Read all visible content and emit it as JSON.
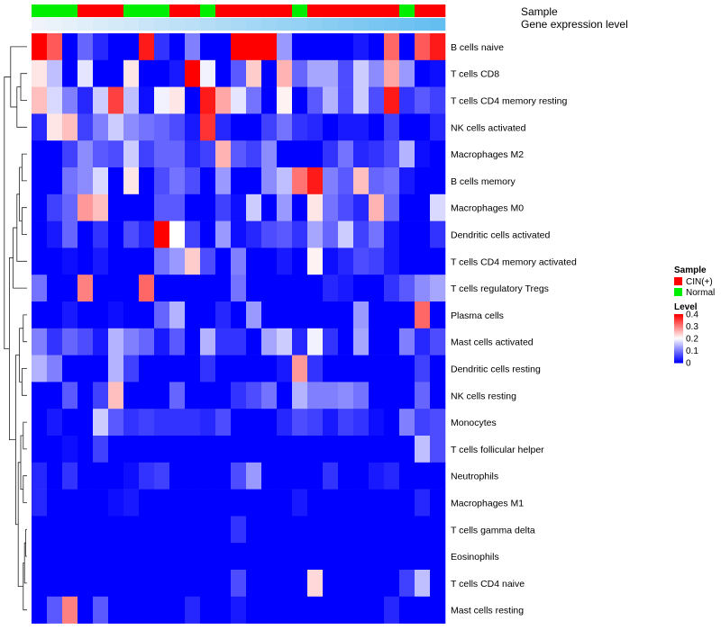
{
  "chart_data": {
    "type": "heatmap",
    "title": "",
    "annotation_tracks": [
      {
        "name": "Sample",
        "label": "Sample"
      },
      {
        "name": "Gene expression level",
        "label": "Gene expression level"
      }
    ],
    "sample_groups": [
      "Normal",
      "Normal",
      "Normal",
      "CIN(+)",
      "CIN(+)",
      "CIN(+)",
      "Normal",
      "Normal",
      "Normal",
      "CIN(+)",
      "CIN(+)",
      "Normal",
      "CIN(+)",
      "CIN(+)",
      "CIN(+)",
      "CIN(+)",
      "CIN(+)",
      "Normal",
      "CIN(+)",
      "CIN(+)",
      "CIN(+)",
      "CIN(+)",
      "CIN(+)",
      "CIN(+)",
      "Normal",
      "CIN(+)",
      "CIN(+)"
    ],
    "expression_gradient": [
      0.0,
      0.04,
      0.08,
      0.12,
      0.15,
      0.19,
      0.23,
      0.27,
      0.31,
      0.35,
      0.38,
      0.42,
      0.46,
      0.5,
      0.54,
      0.58,
      0.62,
      0.65,
      0.69,
      0.73,
      0.77,
      0.81,
      0.85,
      0.88,
      0.92,
      0.96,
      1.0
    ],
    "rows": [
      "B cells naive",
      "T cells CD8",
      "T cells CD4 memory resting",
      "NK cells activated",
      "Macrophages M2",
      "B cells memory",
      "Macrophages M0",
      "Dendritic cells activated",
      "T cells CD4 memory activated",
      "T cells regulatory  Tregs",
      "Plasma cells",
      "Mast cells activated",
      "Dendritic cells resting",
      "NK cells resting",
      "Monocytes",
      "T cells follicular helper",
      "Neutrophils",
      "Macrophages M1",
      "T cells gamma delta",
      "Eosinophils",
      "T cells CD4 naive",
      "Mast cells resting"
    ],
    "values": [
      [
        0.4,
        0.33,
        0.0,
        0.08,
        0.03,
        0.0,
        0.0,
        0.38,
        0.04,
        0.0,
        0.1,
        0.0,
        0.0,
        0.4,
        0.4,
        0.4,
        0.12,
        0.0,
        0.0,
        0.0,
        0.0,
        0.02,
        0.0,
        0.32,
        0.0,
        0.33,
        0.38
      ],
      [
        0.22,
        0.15,
        0.0,
        0.18,
        0.0,
        0.0,
        0.22,
        0.0,
        0.0,
        0.02,
        0.4,
        0.19,
        0.0,
        0.07,
        0.24,
        0.0,
        0.26,
        0.08,
        0.13,
        0.13,
        0.06,
        0.16,
        0.11,
        0.27,
        0.12,
        0.0,
        0.01
      ],
      [
        0.25,
        0.17,
        0.1,
        0.03,
        0.16,
        0.35,
        0.15,
        0.01,
        0.19,
        0.22,
        0.0,
        0.38,
        0.27,
        0.18,
        0.09,
        0.0,
        0.21,
        0.0,
        0.07,
        0.14,
        0.06,
        0.16,
        0.06,
        0.38,
        0.04,
        0.07,
        0.05
      ],
      [
        0.03,
        0.22,
        0.25,
        0.05,
        0.1,
        0.16,
        0.11,
        0.09,
        0.08,
        0.06,
        0.02,
        0.36,
        0.03,
        0.0,
        0.0,
        0.05,
        0.09,
        0.04,
        0.03,
        0.0,
        0.02,
        0.02,
        0.0,
        0.05,
        0.0,
        0.0,
        0.03
      ],
      [
        0.0,
        0.0,
        0.05,
        0.11,
        0.07,
        0.06,
        0.16,
        0.05,
        0.08,
        0.08,
        0.03,
        0.05,
        0.26,
        0.07,
        0.05,
        0.11,
        0.0,
        0.0,
        0.0,
        0.04,
        0.09,
        0.03,
        0.04,
        0.06,
        0.14,
        0.01,
        0.0
      ],
      [
        0.0,
        0.0,
        0.09,
        0.11,
        0.17,
        0.0,
        0.22,
        0.0,
        0.06,
        0.09,
        0.06,
        0.0,
        0.12,
        0.0,
        0.0,
        0.11,
        0.15,
        0.31,
        0.38,
        0.1,
        0.07,
        0.25,
        0.08,
        0.09,
        0.02,
        0.0,
        0.0
      ],
      [
        0.0,
        0.05,
        0.08,
        0.28,
        0.25,
        0.0,
        0.0,
        0.0,
        0.07,
        0.07,
        0.0,
        0.0,
        0.05,
        0.01,
        0.16,
        0.0,
        0.12,
        0.0,
        0.22,
        0.09,
        0.06,
        0.03,
        0.26,
        0.08,
        0.0,
        0.0,
        0.17
      ],
      [
        0.0,
        0.02,
        0.08,
        0.0,
        0.04,
        0.0,
        0.06,
        0.03,
        0.4,
        0.2,
        0.05,
        0.0,
        0.12,
        0.01,
        0.03,
        0.06,
        0.07,
        0.04,
        0.13,
        0.08,
        0.16,
        0.05,
        0.09,
        0.02,
        0.0,
        0.0,
        0.04
      ],
      [
        0.0,
        0.0,
        0.01,
        0.0,
        0.02,
        0.0,
        0.0,
        0.0,
        0.09,
        0.12,
        0.24,
        0.06,
        0.0,
        0.1,
        0.0,
        0.0,
        0.02,
        0.0,
        0.21,
        0.01,
        0.03,
        0.06,
        0.05,
        0.02,
        0.0,
        0.0,
        0.0
      ],
      [
        0.09,
        0.0,
        0.0,
        0.3,
        0.0,
        0.0,
        0.0,
        0.32,
        0.0,
        0.0,
        0.0,
        0.0,
        0.0,
        0.09,
        0.0,
        0.0,
        0.0,
        0.0,
        0.0,
        0.03,
        0.02,
        0.0,
        0.0,
        0.04,
        0.07,
        0.11,
        0.13
      ],
      [
        0.0,
        0.0,
        0.02,
        0.0,
        0.0,
        0.01,
        0.0,
        0.0,
        0.08,
        0.14,
        0.0,
        0.0,
        0.03,
        0.0,
        0.12,
        0.0,
        0.0,
        0.0,
        0.0,
        0.0,
        0.0,
        0.12,
        0.0,
        0.0,
        0.0,
        0.32,
        0.0
      ],
      [
        0.1,
        0.04,
        0.08,
        0.06,
        0.02,
        0.14,
        0.1,
        0.08,
        0.02,
        0.07,
        0.0,
        0.14,
        0.04,
        0.04,
        0.0,
        0.13,
        0.16,
        0.03,
        0.19,
        0.04,
        0.0,
        0.13,
        0.0,
        0.0,
        0.1,
        0.03,
        0.06
      ],
      [
        0.14,
        0.1,
        0.0,
        0.0,
        0.0,
        0.14,
        0.05,
        0.0,
        0.0,
        0.0,
        0.0,
        0.04,
        0.0,
        0.0,
        0.0,
        0.0,
        0.02,
        0.28,
        0.04,
        0.0,
        0.0,
        0.0,
        0.0,
        0.0,
        0.0,
        0.05,
        0.0
      ],
      [
        0.0,
        0.0,
        0.07,
        0.0,
        0.05,
        0.25,
        0.0,
        0.0,
        0.0,
        0.08,
        0.0,
        0.0,
        0.0,
        0.04,
        0.06,
        0.09,
        0.0,
        0.14,
        0.1,
        0.1,
        0.11,
        0.09,
        0.0,
        0.0,
        0.0,
        0.08,
        0.0
      ],
      [
        0.0,
        0.02,
        0.0,
        0.0,
        0.16,
        0.07,
        0.04,
        0.05,
        0.04,
        0.04,
        0.04,
        0.03,
        0.06,
        0.0,
        0.0,
        0.0,
        0.03,
        0.06,
        0.05,
        0.02,
        0.05,
        0.04,
        0.01,
        0.0,
        0.1,
        0.05,
        0.06
      ],
      [
        0.0,
        0.0,
        0.01,
        0.0,
        0.05,
        0.0,
        0.0,
        0.0,
        0.0,
        0.0,
        0.0,
        0.0,
        0.0,
        0.0,
        0.0,
        0.0,
        0.0,
        0.0,
        0.0,
        0.0,
        0.0,
        0.0,
        0.0,
        0.0,
        0.0,
        0.15,
        0.06
      ],
      [
        0.03,
        0.0,
        0.04,
        0.0,
        0.0,
        0.0,
        0.01,
        0.04,
        0.05,
        0.0,
        0.0,
        0.0,
        0.0,
        0.06,
        0.12,
        0.0,
        0.0,
        0.0,
        0.0,
        0.04,
        0.0,
        0.0,
        0.02,
        0.03,
        0.0,
        0.0,
        0.0
      ],
      [
        0.03,
        0.0,
        0.0,
        0.0,
        0.0,
        0.01,
        0.02,
        0.0,
        0.0,
        0.0,
        0.0,
        0.0,
        0.0,
        0.0,
        0.0,
        0.0,
        0.0,
        0.02,
        0.0,
        0.0,
        0.0,
        0.0,
        0.0,
        0.0,
        0.0,
        0.03,
        0.0
      ],
      [
        0.0,
        0.0,
        0.0,
        0.0,
        0.0,
        0.0,
        0.0,
        0.0,
        0.0,
        0.0,
        0.0,
        0.0,
        0.0,
        0.04,
        0.0,
        0.0,
        0.0,
        0.0,
        0.0,
        0.0,
        0.0,
        0.0,
        0.0,
        0.0,
        0.0,
        0.0,
        0.0
      ],
      [
        0.0,
        0.0,
        0.0,
        0.0,
        0.0,
        0.0,
        0.0,
        0.0,
        0.0,
        0.0,
        0.0,
        0.0,
        0.0,
        0.0,
        0.0,
        0.0,
        0.0,
        0.0,
        0.0,
        0.0,
        0.0,
        0.0,
        0.0,
        0.0,
        0.0,
        0.0,
        0.0
      ],
      [
        0.0,
        0.0,
        0.0,
        0.0,
        0.0,
        0.0,
        0.0,
        0.0,
        0.0,
        0.0,
        0.0,
        0.0,
        0.0,
        0.06,
        0.0,
        0.0,
        0.0,
        0.0,
        0.23,
        0.0,
        0.0,
        0.0,
        0.0,
        0.0,
        0.05,
        0.15,
        0.0
      ],
      [
        0.0,
        0.07,
        0.3,
        0.0,
        0.07,
        0.0,
        0.0,
        0.0,
        0.0,
        0.0,
        0.03,
        0.0,
        0.0,
        0.02,
        0.0,
        0.0,
        0.0,
        0.0,
        0.0,
        0.0,
        0.0,
        0.0,
        0.0,
        0.03,
        0.0,
        0.0,
        0.0
      ]
    ],
    "color_scale": {
      "min": 0,
      "max": 0.4,
      "stops": [
        {
          "value": 0.0,
          "color": "#0000ff"
        },
        {
          "value": 0.2,
          "color": "#ffffff"
        },
        {
          "value": 0.4,
          "color": "#ff0000"
        }
      ]
    },
    "legends": {
      "sample": {
        "title": "Sample",
        "items": [
          {
            "label": "CIN(+)",
            "color": "#ff0000"
          },
          {
            "label": "Normal",
            "color": "#00ee00"
          }
        ]
      },
      "level": {
        "title": "Level",
        "ticks": [
          "0.4",
          "0.3",
          "0.2",
          "0.1",
          "0"
        ],
        "tick_values": [
          0.4,
          0.3,
          0.2,
          0.1,
          0
        ]
      }
    },
    "row_dendrogram": true
  }
}
